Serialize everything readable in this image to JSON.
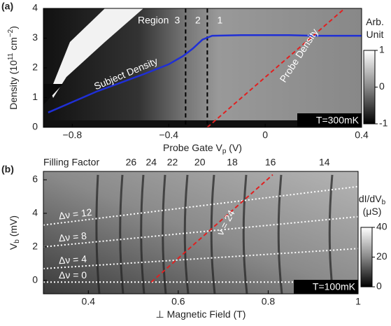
{
  "chart_data": [
    {
      "type": "line",
      "panel_label": "(a)",
      "xlabel": [
        "Probe Gate V",
        "p",
        " (V)"
      ],
      "xlabel_script": "sub",
      "ylabel": [
        "Density (10",
        "11",
        " cm",
        "−2",
        ")"
      ],
      "ylabel_script": "super",
      "xlim": [
        -0.92,
        0.4
      ],
      "ylim": [
        0,
        4
      ],
      "xticks": [
        {
          "value": -0.8,
          "label": "−0.8"
        },
        {
          "value": -0.4,
          "label": "−0.4"
        },
        0,
        0.4
      ],
      "yticks": [
        0,
        1,
        2,
        3,
        4
      ],
      "series": [
        {
          "name": "Subject Density",
          "color": "#1f2fd6",
          "dash": false,
          "x": [
            -0.9,
            -0.8,
            -0.7,
            -0.6,
            -0.5,
            -0.4,
            -0.34,
            -0.3,
            -0.26,
            -0.22,
            -0.1,
            0,
            0.1,
            0.2,
            0.3,
            0.4
          ],
          "values": [
            0.5,
            0.85,
            1.2,
            1.5,
            1.8,
            2.12,
            2.4,
            2.65,
            2.95,
            3.08,
            3.1,
            3.1,
            3.1,
            3.08,
            3.08,
            3.08
          ]
        },
        {
          "name": "Probe Density",
          "color": "#e02020",
          "dash": true,
          "x": [
            -0.24,
            0.33
          ],
          "values": [
            0,
            4
          ]
        }
      ],
      "regions": {
        "label": "Region",
        "boundaries": [
          -0.33,
          -0.24
        ],
        "names": [
          "3",
          "2",
          "1"
        ]
      },
      "colorbar": {
        "title_lines": [
          [
            "Arb."
          ],
          [
            "Unit"
          ]
        ],
        "lim": [
          -1,
          1
        ],
        "ticks": [
          1,
          0,
          {
            "value": -1,
            "label": "-1"
          }
        ]
      },
      "annotation": "T=300mK"
    },
    {
      "type": "line",
      "panel_label": "(b)",
      "xlabel": [
        "⊥ Magnetic Field (T)"
      ],
      "xlabel_script": "sub",
      "ylabel": [
        "V",
        "b",
        " (mV)"
      ],
      "ylabel_script": "sub",
      "xlim": [
        0.3,
        1
      ],
      "ylim": [
        -0.8,
        6.5
      ],
      "xticks": [
        0.4,
        0.6,
        0.8,
        1
      ],
      "yticks": [
        0,
        2,
        4,
        6
      ],
      "top_axis": {
        "label": "Filling Factor",
        "ticks": [
          {
            "value": 0.495,
            "label": "26"
          },
          {
            "value": 0.54,
            "label": "24"
          },
          {
            "value": 0.587,
            "label": "22"
          },
          {
            "value": 0.648,
            "label": "20"
          },
          {
            "value": 0.72,
            "label": "18"
          },
          {
            "value": 0.805,
            "label": "16"
          },
          {
            "value": 0.925,
            "label": "14"
          }
        ]
      },
      "series": [
        {
          "name": "Δν = 12",
          "color": "#ffffff",
          "dash": true,
          "x": [
            0.3,
            1
          ],
          "values": [
            3.3,
            5.6
          ]
        },
        {
          "name": "Δν = 8",
          "color": "#ffffff",
          "dash": true,
          "x": [
            0.3,
            1
          ],
          "values": [
            2.0,
            3.8
          ]
        },
        {
          "name": "Δν = 4",
          "color": "#ffffff",
          "dash": true,
          "x": [
            0.3,
            1
          ],
          "values": [
            0.7,
            1.9
          ]
        },
        {
          "name": "Δν = 0",
          "color": "#ffffff",
          "dash": true,
          "x": [
            0.3,
            1
          ],
          "values": [
            -0.1,
            -0.1
          ]
        },
        {
          "name": "ν = 24",
          "color": "#e02020",
          "dash": true,
          "x": [
            0.54,
            0.81
          ],
          "values": [
            -0.1,
            6.3
          ]
        }
      ],
      "colorbar": {
        "title_lines": [
          [
            "dI/dV",
            "b"
          ],
          [
            "(μS)"
          ]
        ],
        "lim": [
          0,
          40
        ],
        "ticks": [
          40,
          20,
          0
        ]
      },
      "annotation": "T=100mK"
    }
  ]
}
